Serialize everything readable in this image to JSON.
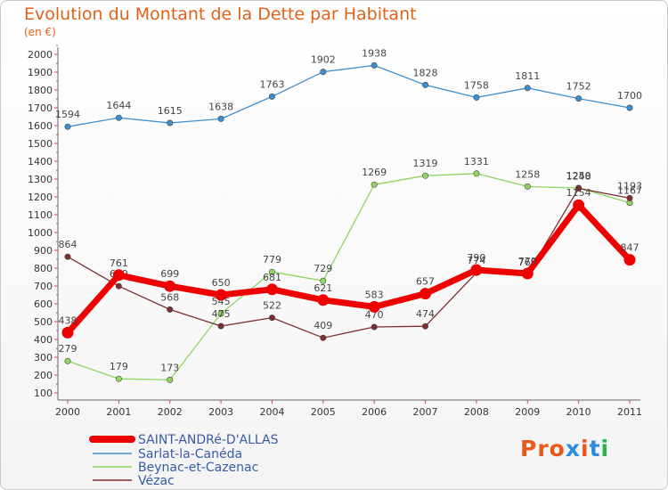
{
  "title": "Evolution du Montant de la Dette par Habitant",
  "subtitle": "(en €)",
  "logo": {
    "text": "Proxiti",
    "colors": [
      "#e8571b",
      "#e8571b",
      "#e8571b",
      "#2e8bd6",
      "#e8571b",
      "#2e8bd6",
      "#2bb34a"
    ]
  },
  "chart_data": {
    "type": "line",
    "title": "Evolution du Montant de la Dette par Habitant",
    "subtitle": "(en €)",
    "x": [
      "2000",
      "2001",
      "2002",
      "2003",
      "2004",
      "2005",
      "2006",
      "2007",
      "2008",
      "2009",
      "2010",
      "2011"
    ],
    "ylim": [
      100,
      2000
    ],
    "yticks": [
      100,
      200,
      300,
      400,
      500,
      600,
      700,
      800,
      900,
      1000,
      1100,
      1200,
      1300,
      1400,
      1500,
      1600,
      1700,
      1800,
      1900,
      2000
    ],
    "grid": false,
    "legend": "bottom-left",
    "series": [
      {
        "name": "SAINT-ANDRé-D'ALLAS",
        "color": "#ee0000",
        "values": [
          438,
          761,
          699,
          650,
          681,
          621,
          583,
          657,
          790,
          770,
          1154,
          847
        ]
      },
      {
        "name": "Sarlat-la-Canéda",
        "color": "#3e8fd0",
        "values": [
          1594,
          1644,
          1615,
          1638,
          1763,
          1902,
          1938,
          1828,
          1758,
          1811,
          1752,
          1700
        ]
      },
      {
        "name": "Beynac-et-Cazenac",
        "color": "#8fd55f",
        "values": [
          279,
          179,
          173,
          545,
          779,
          729,
          1269,
          1319,
          1331,
          1258,
          1250,
          1167
        ]
      },
      {
        "name": "Vézac",
        "color": "#7e2e2e",
        "values": [
          864,
          699,
          568,
          475,
          522,
          409,
          470,
          474,
          774,
          765,
          1248,
          1193
        ]
      }
    ]
  }
}
